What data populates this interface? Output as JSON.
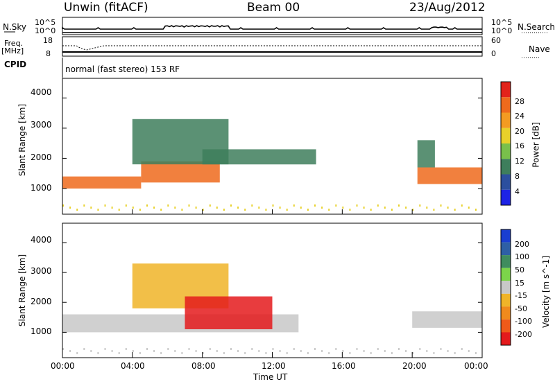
{
  "header": {
    "radar": "Unwin (fitACF)",
    "beam": "Beam 00",
    "date": "23/Aug/2012"
  },
  "top_panel": {
    "nsky_label": "N.Sky",
    "nsearch_label": "N.Search",
    "left_ticks": [
      "10^5",
      "10^0"
    ],
    "right_ticks": [
      "10^5",
      "10^0"
    ],
    "freq_label": "Freq.",
    "freq_unit": "[MHz]",
    "freq_ticks": [
      "18",
      "8"
    ],
    "nave_ticks": [
      "60",
      "0"
    ],
    "nave_label": "Nave",
    "cpid_label": "CPID",
    "cpid_value": "normal (fast stereo) 153 RF"
  },
  "chart_data": [
    {
      "type": "heatmap",
      "panel": "power",
      "ylabel": "Slant Range [km]",
      "yticks": [
        "1000",
        "2000",
        "3000",
        "4000"
      ],
      "ylim": [
        150,
        4650
      ],
      "xlim": [
        0,
        24
      ],
      "colorbar": {
        "label": "Power [dB]",
        "ticks": [
          "4",
          "8",
          "12",
          "16",
          "20",
          "24",
          "28"
        ],
        "colors": [
          "#1d23e6",
          "#2c4f9e",
          "#3e7e5c",
          "#79c04b",
          "#e8d12a",
          "#f39b22",
          "#ee6a1c",
          "#e2231a"
        ]
      },
      "regions": [
        {
          "t0": 0.0,
          "t1": 4.5,
          "r0": 1000,
          "r1": 1400,
          "level": "high"
        },
        {
          "t0": 4.5,
          "t1": 9.0,
          "r0": 1200,
          "r1": 1900,
          "level": "high"
        },
        {
          "t0": 4.0,
          "t1": 9.5,
          "r0": 1800,
          "r1": 3300,
          "level": "medium"
        },
        {
          "t0": 8.0,
          "t1": 14.5,
          "r0": 1800,
          "r1": 2300,
          "level": "medium"
        },
        {
          "t0": 20.3,
          "t1": 24.0,
          "r0": 1150,
          "r1": 1700,
          "level": "high"
        },
        {
          "t0": 20.3,
          "t1": 21.3,
          "r0": 1700,
          "r1": 2600,
          "level": "medium"
        }
      ]
    },
    {
      "type": "heatmap",
      "panel": "velocity",
      "ylabel": "Slant Range [km]",
      "yticks": [
        "1000",
        "2000",
        "3000",
        "4000"
      ],
      "ylim": [
        150,
        4650
      ],
      "xlim": [
        0,
        24
      ],
      "xticks": [
        "00:00",
        "04:00",
        "08:00",
        "12:00",
        "16:00",
        "20:00",
        "00:00"
      ],
      "xlabel": "Time UT",
      "colorbar": {
        "label": "Velocity [m s^-1]",
        "ticks": [
          "200",
          "100",
          "50",
          "15",
          "-15",
          "-50",
          "-100",
          "-200"
        ],
        "colors": [
          "#1a3ed0",
          "#2e5fa5",
          "#3f8c5e",
          "#7cd44a",
          "#c8c8c8",
          "#f0b428",
          "#f08a1c",
          "#ef5a1a",
          "#e41a1c"
        ]
      },
      "regions": [
        {
          "t0": 0.0,
          "t1": 13.5,
          "r0": 1000,
          "r1": 1600,
          "velocity": "near zero"
        },
        {
          "t0": 4.0,
          "t1": 9.5,
          "r0": 1800,
          "r1": 3300,
          "velocity": "negative"
        },
        {
          "t0": 7.0,
          "t1": 12.0,
          "r0": 1100,
          "r1": 2200,
          "velocity": "strongly negative"
        },
        {
          "t0": 20.0,
          "t1": 24.0,
          "r0": 1150,
          "r1": 1700,
          "velocity": "near zero"
        }
      ]
    }
  ]
}
